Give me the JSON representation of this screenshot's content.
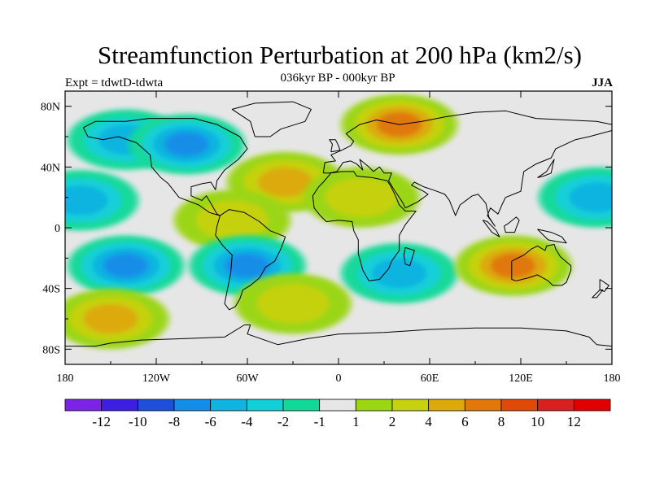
{
  "chart_data": {
    "type": "heatmap",
    "title": "Streamfunction Perturbation at 200 hPa (km2/s)",
    "left_string": "Expt = tdwtD-tdwta",
    "center_string": "036kyr BP - 000kyr BP",
    "right_string": "JJA",
    "xlim": [
      -180,
      180
    ],
    "ylim": [
      -90,
      90
    ],
    "x_ticks": [
      {
        "value": -180,
        "label": "180"
      },
      {
        "value": -120,
        "label": "120W"
      },
      {
        "value": -60,
        "label": "60W"
      },
      {
        "value": 0,
        "label": "0"
      },
      {
        "value": 60,
        "label": "60E"
      },
      {
        "value": 120,
        "label": "120E"
      },
      {
        "value": 180,
        "label": "180"
      }
    ],
    "y_ticks": [
      {
        "value": 80,
        "label": "80N"
      },
      {
        "value": 40,
        "label": "40N"
      },
      {
        "value": 0,
        "label": "0"
      },
      {
        "value": -40,
        "label": "40S"
      },
      {
        "value": -80,
        "label": "80S"
      }
    ],
    "colorbar": {
      "levels": [
        "-12",
        "-10",
        "-8",
        "-6",
        "-4",
        "-2",
        "-1",
        "1",
        "2",
        "4",
        "6",
        "8",
        "10",
        "12"
      ],
      "colors": [
        "#7b24e6",
        "#3c1fe0",
        "#1d4fd8",
        "#138ee8",
        "#10b4e0",
        "#12cfd8",
        "#12d99a",
        "#e6e6e6",
        "#9bd614",
        "#c6d110",
        "#dcaa0a",
        "#e0780a",
        "#e04a08",
        "#d82020",
        "#e00000"
      ]
    },
    "anomaly_regions": [
      {
        "name": "n-pacific-low",
        "lon": -140,
        "lat": 58,
        "value": -4
      },
      {
        "name": "n-america-low",
        "lon": -100,
        "lat": 55,
        "value": -6
      },
      {
        "name": "e-pacific-low",
        "lon": -170,
        "lat": 18,
        "value": -4
      },
      {
        "name": "n-atlantic-high",
        "lon": -35,
        "lat": 30,
        "value": 5
      },
      {
        "name": "n-africa-high",
        "lon": 15,
        "lat": 20,
        "value": 3
      },
      {
        "name": "scandinavia-high",
        "lon": 40,
        "lat": 68,
        "value": 7
      },
      {
        "name": "amazon-high",
        "lon": -70,
        "lat": 5,
        "value": 3
      },
      {
        "name": "s-pacific-low",
        "lon": -140,
        "lat": -25,
        "value": -6
      },
      {
        "name": "s-atlantic-low",
        "lon": -60,
        "lat": -25,
        "value": -6
      },
      {
        "name": "s-indian-low",
        "lon": 40,
        "lat": -30,
        "value": -4
      },
      {
        "name": "australia-high",
        "lon": 115,
        "lat": -25,
        "value": 7
      },
      {
        "name": "s-ocean-high",
        "lon": -150,
        "lat": -60,
        "value": 4
      },
      {
        "name": "s-ocean-high-2",
        "lon": -30,
        "lat": -50,
        "value": 3
      },
      {
        "name": "w-pacific-low",
        "lon": 170,
        "lat": 20,
        "value": -4
      }
    ]
  }
}
